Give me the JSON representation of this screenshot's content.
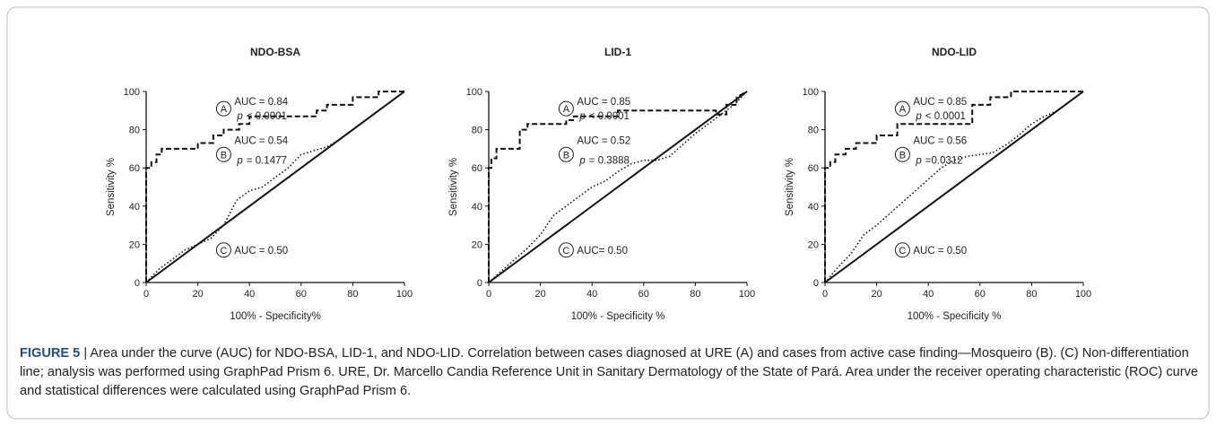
{
  "chart_data": [
    {
      "type": "line",
      "title": "NDO-BSA",
      "xlabel": "100% - Specificity%",
      "ylabel": "Sensitivity %",
      "xlim": [
        0,
        100
      ],
      "ylim": [
        0,
        100
      ],
      "xticks": [
        0,
        20,
        40,
        60,
        80,
        100
      ],
      "yticks": [
        0,
        20,
        40,
        60,
        80,
        100
      ],
      "series": [
        {
          "name": "A",
          "color": "#111111",
          "style": "dashed",
          "x": [
            0,
            0,
            2,
            2,
            4,
            4,
            6,
            6,
            8,
            8,
            20,
            20,
            26,
            26,
            30,
            30,
            36,
            36,
            40,
            40,
            66,
            66,
            70,
            70,
            80,
            80,
            90,
            90,
            100
          ],
          "values": [
            0,
            60,
            60,
            63,
            63,
            67,
            67,
            70,
            70,
            70,
            70,
            73,
            73,
            77,
            77,
            80,
            80,
            83,
            83,
            87,
            87,
            90,
            90,
            93,
            93,
            97,
            97,
            100,
            100
          ]
        },
        {
          "name": "B",
          "color": "#111111",
          "style": "dotted",
          "x": [
            0,
            5,
            10,
            15,
            20,
            25,
            30,
            35,
            40,
            45,
            50,
            55,
            60,
            65,
            70,
            75,
            80,
            85,
            90,
            95,
            100
          ],
          "values": [
            0,
            7,
            12,
            17,
            20,
            23,
            30,
            43,
            48,
            50,
            55,
            60,
            67,
            69,
            71,
            75,
            80,
            85,
            90,
            95,
            100
          ]
        },
        {
          "name": "C",
          "color": "#111111",
          "style": "solid",
          "x": [
            0,
            100
          ],
          "values": [
            0,
            100
          ]
        }
      ],
      "annotations": [
        {
          "auc": "AUC = 0.84",
          "p": "p",
          "p_value": "< 0.0001"
        },
        {
          "auc": "AUC = 0.54",
          "p": "p",
          "p_value": "= 0.1477"
        },
        {
          "auc": "AUC = 0.50"
        }
      ]
    },
    {
      "type": "line",
      "title": "LID-1",
      "xlabel": "100% - Specificity %",
      "ylabel": "Sensitivity %",
      "xlim": [
        0,
        100
      ],
      "ylim": [
        0,
        100
      ],
      "xticks": [
        0,
        20,
        40,
        60,
        80,
        100
      ],
      "yticks": [
        0,
        20,
        40,
        60,
        80,
        100
      ],
      "series": [
        {
          "name": "A",
          "color": "#111111",
          "style": "dashed",
          "x": [
            0,
            0,
            1,
            1,
            3,
            3,
            12,
            12,
            15,
            15,
            30,
            30,
            33,
            33,
            50,
            50,
            88,
            88,
            92,
            92,
            96,
            96,
            100
          ],
          "values": [
            0,
            60,
            60,
            65,
            65,
            70,
            70,
            80,
            80,
            83,
            83,
            85,
            85,
            87,
            87,
            90,
            90,
            88,
            88,
            93,
            93,
            97,
            100
          ]
        },
        {
          "name": "B",
          "color": "#111111",
          "style": "dotted",
          "x": [
            0,
            5,
            10,
            15,
            20,
            25,
            30,
            35,
            40,
            45,
            50,
            55,
            60,
            65,
            70,
            75,
            80,
            85,
            90,
            95,
            100
          ],
          "values": [
            0,
            6,
            12,
            18,
            25,
            35,
            40,
            45,
            50,
            53,
            58,
            62,
            64,
            64,
            66,
            72,
            78,
            83,
            88,
            93,
            100
          ]
        },
        {
          "name": "C",
          "color": "#111111",
          "style": "solid",
          "x": [
            0,
            100
          ],
          "values": [
            0,
            100
          ]
        }
      ],
      "annotations": [
        {
          "auc": "AUC = 0.85",
          "p": "p",
          "p_value": "< 0.0001"
        },
        {
          "auc": "AUC = 0.52",
          "p": "p",
          "p_value": "= 0.3888"
        },
        {
          "auc": "AUC= 0.50"
        }
      ]
    },
    {
      "type": "line",
      "title": "NDO-LID",
      "xlabel": "100% - Specificity %",
      "ylabel": "Sensitivity %",
      "xlim": [
        0,
        100
      ],
      "ylim": [
        0,
        100
      ],
      "xticks": [
        0,
        20,
        40,
        60,
        80,
        100
      ],
      "yticks": [
        0,
        20,
        40,
        60,
        80,
        100
      ],
      "series": [
        {
          "name": "A",
          "color": "#111111",
          "style": "dashed",
          "x": [
            0,
            0,
            2,
            2,
            4,
            4,
            8,
            8,
            12,
            12,
            20,
            20,
            28,
            28,
            57,
            57,
            64,
            64,
            72,
            72,
            100
          ],
          "values": [
            0,
            60,
            60,
            63,
            63,
            67,
            67,
            70,
            70,
            73,
            73,
            77,
            77,
            83,
            83,
            93,
            93,
            97,
            97,
            100,
            100
          ]
        },
        {
          "name": "B",
          "color": "#111111",
          "style": "dotted",
          "x": [
            0,
            5,
            10,
            15,
            20,
            25,
            30,
            35,
            40,
            45,
            50,
            55,
            60,
            65,
            70,
            75,
            80,
            85,
            90,
            95,
            100
          ],
          "values": [
            0,
            8,
            15,
            25,
            30,
            36,
            42,
            48,
            54,
            60,
            64,
            66,
            67,
            68,
            72,
            77,
            83,
            87,
            90,
            95,
            100
          ]
        },
        {
          "name": "C",
          "color": "#111111",
          "style": "solid",
          "x": [
            0,
            100
          ],
          "values": [
            0,
            100
          ]
        }
      ],
      "annotations": [
        {
          "auc": "AUC = 0.85",
          "p": "p",
          "p_value": "< 0.0001"
        },
        {
          "auc": "AUC = 0.56",
          "p": "p",
          "p_value": "=0.0312"
        },
        {
          "auc": "AUC = 0.50"
        }
      ]
    }
  ],
  "caption": {
    "label": "FIGURE 5",
    "text": "| Area under the curve (AUC) for NDO-BSA, LID-1, and NDO-LID. Correlation between cases diagnosed at URE (A) and cases from active case finding—Mosqueiro (B). (C) Non-differentiation line; analysis was performed using GraphPad Prism 6. URE, Dr. Marcello Candia Reference Unit in Sanitary Dermatology of the State of Pará. Area under the receiver operating characteristic (ROC) curve and statistical differences were calculated using GraphPad Prism 6."
  }
}
